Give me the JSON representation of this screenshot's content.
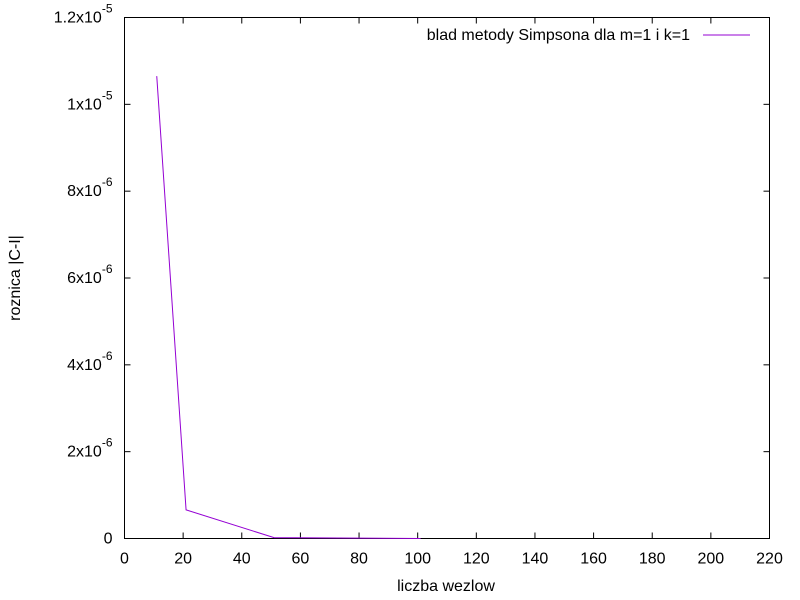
{
  "chart_data": {
    "type": "line",
    "title": "",
    "xlabel": "liczba wezlow",
    "ylabel": "roznica |C-I|",
    "xlim": [
      0,
      220
    ],
    "ylim": [
      0,
      1.2e-05
    ],
    "x_ticks": [
      0,
      20,
      40,
      60,
      80,
      100,
      120,
      140,
      160,
      180,
      200,
      220
    ],
    "x_tick_labels": [
      "0",
      "20",
      "40",
      "60",
      "80",
      "100",
      "120",
      "140",
      "160",
      "180",
      "200",
      "220"
    ],
    "y_ticks": [
      {
        "value": 0,
        "mantissa": "0",
        "exponent": ""
      },
      {
        "value": 2e-06,
        "mantissa": "2x10",
        "exponent": "-6"
      },
      {
        "value": 4e-06,
        "mantissa": "4x10",
        "exponent": "-6"
      },
      {
        "value": 6e-06,
        "mantissa": "6x10",
        "exponent": "-6"
      },
      {
        "value": 8e-06,
        "mantissa": "8x10",
        "exponent": "-6"
      },
      {
        "value": 1e-05,
        "mantissa": "1x10",
        "exponent": "-5"
      },
      {
        "value": 1.2e-05,
        "mantissa": "1.2x10",
        "exponent": "-5"
      }
    ],
    "grid": false,
    "legend_position": "top-right",
    "series": [
      {
        "name": "blad metody Simpsona dla m=1 i k=1",
        "color": "#9400d3",
        "x": [
          11,
          21,
          51,
          101
        ],
        "y": [
          1.065e-05,
          6.6e-07,
          2e-08,
          1e-09
        ]
      }
    ]
  }
}
